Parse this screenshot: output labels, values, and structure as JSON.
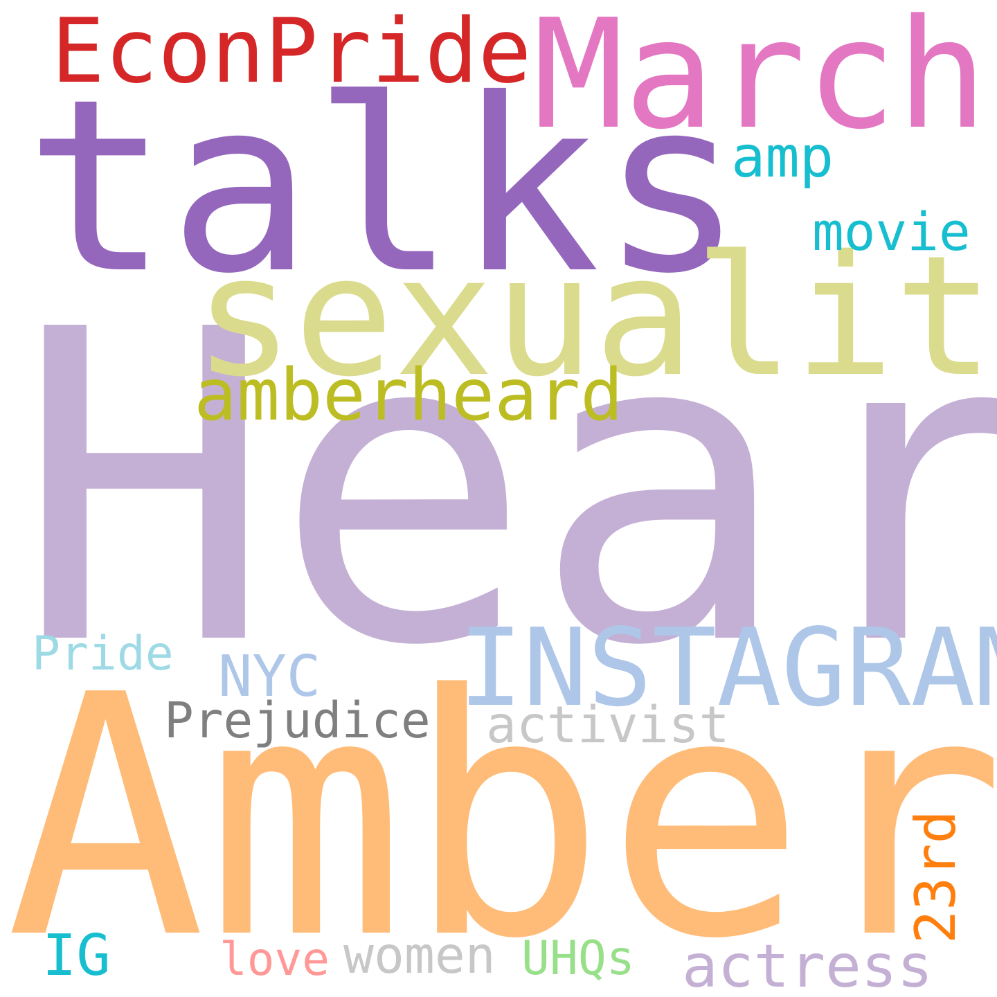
{
  "words": {
    "heard": {
      "text": "Heard",
      "color": "#c4b0d5"
    },
    "amber": {
      "text": "Amber",
      "color": "#ffbc79"
    },
    "talks": {
      "text": "talks",
      "color": "#9467bd"
    },
    "sexuality": {
      "text": "sexuality",
      "color": "#dbdb8d"
    },
    "march": {
      "text": "March",
      "color": "#e377c2"
    },
    "instagram": {
      "text": "INSTAGRAM",
      "color": "#aec7e8"
    },
    "econpride": {
      "text": "EconPride",
      "color": "#d62728"
    },
    "amberheard": {
      "text": "amberheard",
      "color": "#bcbd22"
    },
    "amp": {
      "text": "amp",
      "color": "#17becf"
    },
    "movie": {
      "text": "movie",
      "color": "#17becf"
    },
    "activist": {
      "text": "activist",
      "color": "#c7c7c7"
    },
    "prejudice": {
      "text": "Prejudice",
      "color": "#7f7f7f"
    },
    "actress": {
      "text": "actress",
      "color": "#c5b0d5"
    },
    "nyc": {
      "text": "NYC",
      "color": "#aec7e8"
    },
    "pride": {
      "text": "Pride",
      "color": "#9edae5"
    },
    "ig": {
      "text": "IG",
      "color": "#17becf"
    },
    "women": {
      "text": "women",
      "color": "#c7c7c7"
    },
    "uhqs": {
      "text": "UHQs",
      "color": "#98df8a"
    },
    "love": {
      "text": "love",
      "color": "#ff9896"
    },
    "23rd": {
      "text": "23rd",
      "color": "#ff7f0e"
    }
  }
}
